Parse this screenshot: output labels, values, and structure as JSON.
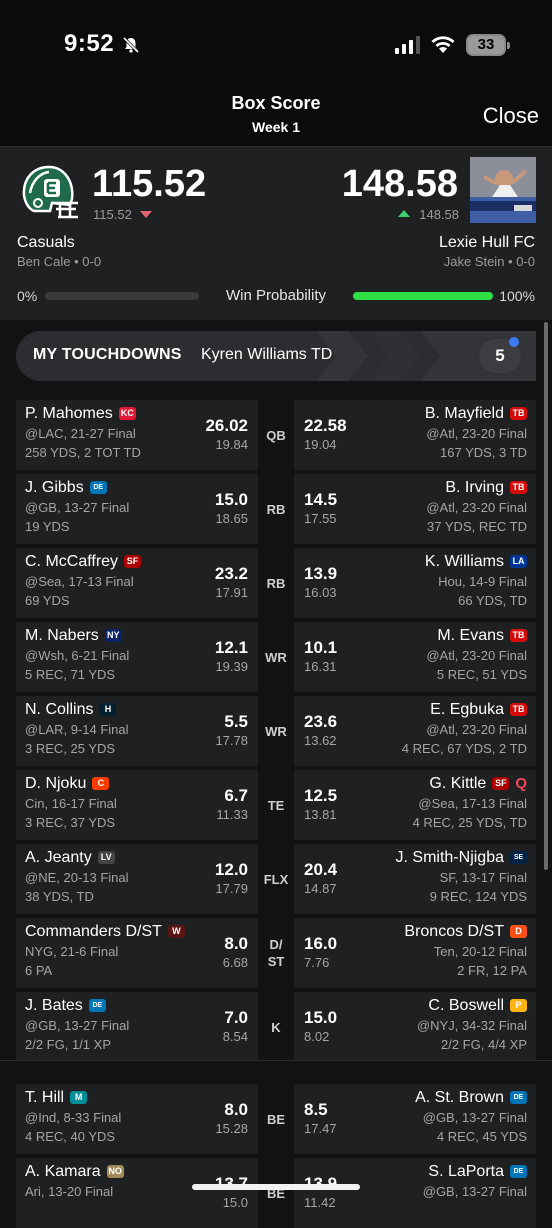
{
  "status_bar": {
    "time": "9:52",
    "battery": "33"
  },
  "header": {
    "title": "Box Score",
    "subtitle": "Week 1",
    "close_label": "Close"
  },
  "matchup": {
    "left": {
      "score": "115.52",
      "projected": "115.52",
      "team": "Casuals",
      "owner": "Ben Cale • 0-0",
      "win_pct": "0%"
    },
    "right": {
      "score": "148.58",
      "projected": "148.58",
      "team": "Lexie Hull FC",
      "owner": "Jake Stein • 0-0",
      "win_pct": "100%"
    },
    "win_prob_label": "Win Probability",
    "win_prob_right_fraction": 1.0,
    "colors": {
      "down": "#e06672",
      "up": "#3ecf6a",
      "bar": "#2fe043"
    }
  },
  "touchdowns": {
    "title": "MY TOUCHDOWNS",
    "player": "Kyren Williams TD",
    "count": "5"
  },
  "rows": [
    {
      "pos": "QB",
      "l": {
        "name": "P. Mahomes",
        "logo": "chiefs-logo",
        "game": "@LAC, 21-27 Final",
        "stat": "258 YDS, 2 TOT TD",
        "pts": "26.02",
        "proj": "19.84"
      },
      "r": {
        "name": "B. Mayfield",
        "logo": "buccaneers-logo",
        "game": "@Atl, 23-20 Final",
        "stat": "167 YDS, 3 TD",
        "pts": "22.58",
        "proj": "19.04"
      }
    },
    {
      "pos": "RB",
      "l": {
        "name": "J. Gibbs",
        "logo": "lions-logo",
        "game": "@GB, 13-27 Final",
        "stat": "19 YDS",
        "pts": "15.0",
        "proj": "18.65"
      },
      "r": {
        "name": "B. Irving",
        "logo": "buccaneers-logo",
        "game": "@Atl, 23-20 Final",
        "stat": "37 YDS, REC TD",
        "pts": "14.5",
        "proj": "17.55"
      }
    },
    {
      "pos": "RB",
      "l": {
        "name": "C. McCaffrey",
        "logo": "49ers-logo",
        "game": "@Sea, 17-13 Final",
        "stat": "69 YDS",
        "pts": "23.2",
        "proj": "17.91"
      },
      "r": {
        "name": "K. Williams",
        "logo": "rams-logo",
        "game": "Hou, 14-9 Final",
        "stat": "66 YDS, TD",
        "pts": "13.9",
        "proj": "16.03"
      }
    },
    {
      "pos": "WR",
      "l": {
        "name": "M. Nabers",
        "logo": "giants-logo",
        "game": "@Wsh, 6-21 Final",
        "stat": "5 REC, 71 YDS",
        "pts": "12.1",
        "proj": "19.39"
      },
      "r": {
        "name": "M. Evans",
        "logo": "buccaneers-logo",
        "game": "@Atl, 23-20 Final",
        "stat": "5 REC, 51 YDS",
        "pts": "10.1",
        "proj": "16.31"
      }
    },
    {
      "pos": "WR",
      "l": {
        "name": "N. Collins",
        "logo": "texans-logo",
        "game": "@LAR, 9-14 Final",
        "stat": "3 REC, 25 YDS",
        "pts": "5.5",
        "proj": "17.78"
      },
      "r": {
        "name": "E. Egbuka",
        "logo": "buccaneers-logo",
        "game": "@Atl, 23-20 Final",
        "stat": "4 REC, 67 YDS, 2 TD",
        "pts": "23.6",
        "proj": "13.62"
      }
    },
    {
      "pos": "TE",
      "l": {
        "name": "D. Njoku",
        "logo": "browns-logo",
        "game": "Cin, 16-17 Final",
        "stat": "3 REC, 37 YDS",
        "pts": "6.7",
        "proj": "11.33"
      },
      "r": {
        "name": "G. Kittle",
        "logo": "49ers-logo",
        "tag": "Q",
        "game": "@Sea, 17-13 Final",
        "stat": "4 REC, 25 YDS, TD",
        "pts": "12.5",
        "proj": "13.81"
      }
    },
    {
      "pos": "FLX",
      "l": {
        "name": "A. Jeanty",
        "logo": "raiders-logo",
        "game": "@NE, 20-13 Final",
        "stat": "38 YDS, TD",
        "pts": "12.0",
        "proj": "17.79"
      },
      "r": {
        "name": "J. Smith-Njigba",
        "logo": "seahawks-logo",
        "game": "SF, 13-17 Final",
        "stat": "9 REC, 124 YDS",
        "pts": "20.4",
        "proj": "14.87"
      }
    },
    {
      "pos": "D/ ST",
      "l": {
        "name": "Commanders D/ST",
        "logo": "commanders-logo",
        "game": "NYG, 21-6 Final",
        "stat": "6 PA",
        "pts": "8.0",
        "proj": "6.68"
      },
      "r": {
        "name": "Broncos D/ST",
        "logo": "broncos-logo",
        "game": "Ten, 20-12 Final",
        "stat": "2 FR, 12 PA",
        "pts": "16.0",
        "proj": "7.76"
      }
    },
    {
      "pos": "K",
      "l": {
        "name": "J. Bates",
        "logo": "lions-logo",
        "game": "@GB, 13-27 Final",
        "stat": "2/2 FG, 1/1 XP",
        "pts": "7.0",
        "proj": "8.54"
      },
      "r": {
        "name": "C. Boswell",
        "logo": "steelers-logo",
        "game": "@NYJ, 34-32 Final",
        "stat": "2/2 FG, 4/4 XP",
        "pts": "15.0",
        "proj": "8.02"
      }
    },
    {
      "pos": "BE",
      "l": {
        "name": "T. Hill",
        "logo": "dolphins-logo",
        "game": "@Ind, 8-33 Final",
        "stat": "4 REC, 40 YDS",
        "pts": "8.0",
        "proj": "15.28"
      },
      "r": {
        "name": "A. St. Brown",
        "logo": "lions-logo",
        "game": "@GB, 13-27 Final",
        "stat": "4 REC, 45 YDS",
        "pts": "8.5",
        "proj": "17.47"
      }
    },
    {
      "pos": "BE",
      "l": {
        "name": "A. Kamara",
        "logo": "saints-logo",
        "game": "Ari, 13-20 Final",
        "stat": "",
        "pts": "13.7",
        "proj": "15.0"
      },
      "r": {
        "name": "S. LaPorta",
        "logo": "lions-logo",
        "game": "@GB, 13-27 Final",
        "stat": "",
        "pts": "13.9",
        "proj": "11.42"
      }
    }
  ]
}
